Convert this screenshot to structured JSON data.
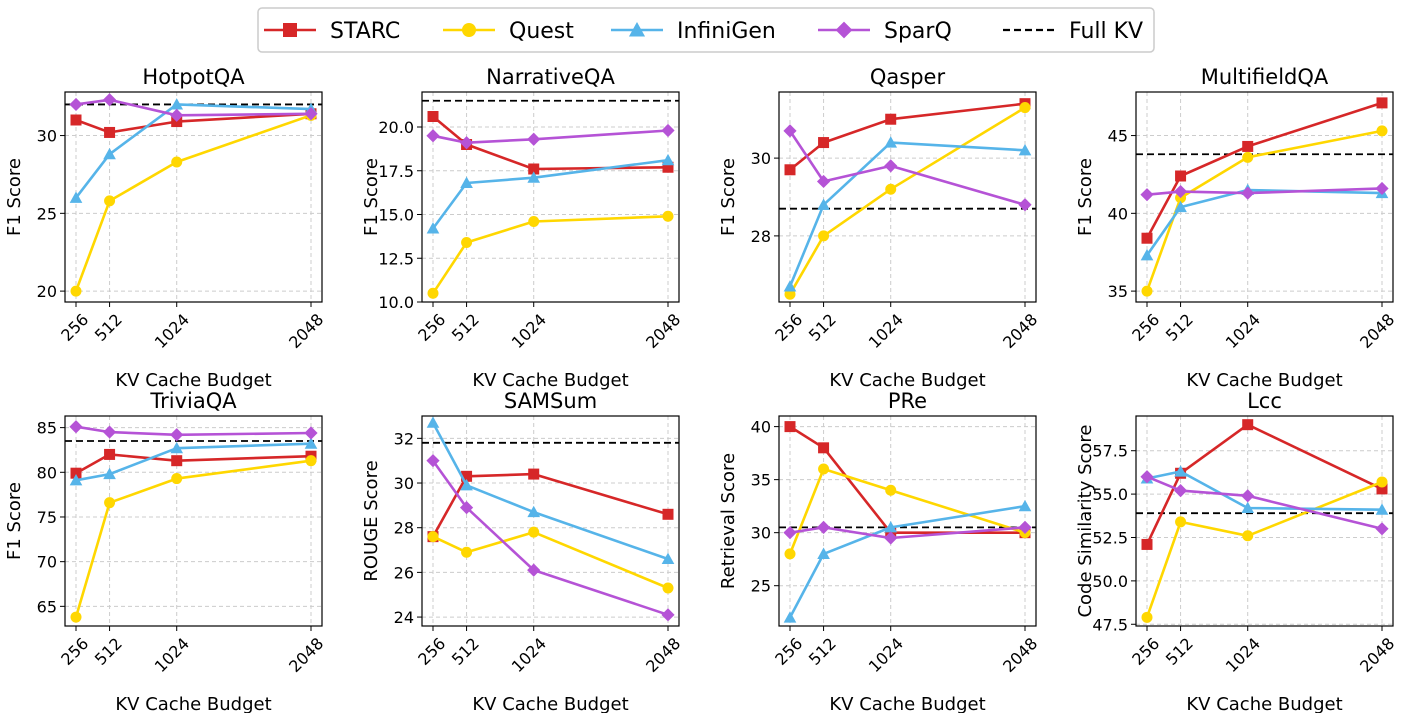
{
  "legend": {
    "items": [
      {
        "name": "STARC",
        "color": "#d62728",
        "marker": "square"
      },
      {
        "name": "Quest",
        "color": "#ffd700",
        "marker": "circle"
      },
      {
        "name": "InfiniGen",
        "color": "#56b4e9",
        "marker": "triangle"
      },
      {
        "name": "SparQ",
        "color": "#b553d6",
        "marker": "diamond"
      },
      {
        "name": "Full KV",
        "color": "#000000",
        "marker": "dashed"
      }
    ]
  },
  "chart_data": [
    {
      "type": "line",
      "title": "HotpotQA",
      "xlabel": "KV Cache Budget",
      "ylabel": "F1 Score",
      "x": [
        256,
        512,
        1024,
        2048
      ],
      "xticks": [
        "256",
        "512",
        "1024",
        "2048"
      ],
      "ylim": [
        19.3,
        32.8
      ],
      "yticks": [
        20,
        25,
        30
      ],
      "ytick_labels": [
        "20",
        "25",
        "30"
      ],
      "full_kv": 32.0,
      "series": [
        {
          "name": "STARC",
          "values": [
            31.0,
            30.2,
            30.9,
            31.4
          ]
        },
        {
          "name": "Quest",
          "values": [
            20.0,
            25.8,
            28.3,
            31.3
          ]
        },
        {
          "name": "InfiniGen",
          "values": [
            26.0,
            28.8,
            32.0,
            31.7
          ]
        },
        {
          "name": "SparQ",
          "values": [
            32.0,
            32.3,
            31.3,
            31.4
          ]
        }
      ]
    },
    {
      "type": "line",
      "title": "NarrativeQA",
      "xlabel": "KV Cache Budget",
      "ylabel": "F1 Score",
      "x": [
        256,
        512,
        1024,
        2048
      ],
      "xticks": [
        "256",
        "512",
        "1024",
        "2048"
      ],
      "ylim": [
        10.0,
        22.0
      ],
      "yticks": [
        10.0,
        12.5,
        15.0,
        17.5,
        20.0
      ],
      "ytick_labels": [
        "10.0",
        "12.5",
        "15.0",
        "17.5",
        "20.0"
      ],
      "full_kv": 21.5,
      "series": [
        {
          "name": "STARC",
          "values": [
            20.6,
            19.0,
            17.6,
            17.7
          ]
        },
        {
          "name": "Quest",
          "values": [
            10.5,
            13.4,
            14.6,
            14.9
          ]
        },
        {
          "name": "InfiniGen",
          "values": [
            14.2,
            16.8,
            17.1,
            18.1
          ]
        },
        {
          "name": "SparQ",
          "values": [
            19.5,
            19.1,
            19.3,
            19.8
          ]
        }
      ]
    },
    {
      "type": "line",
      "title": "Qasper",
      "xlabel": "KV Cache Budget",
      "ylabel": "F1 Score",
      "x": [
        256,
        512,
        1024,
        2048
      ],
      "xticks": [
        "256",
        "512",
        "1024",
        "2048"
      ],
      "ylim": [
        26.3,
        31.7
      ],
      "yticks": [
        28,
        30
      ],
      "ytick_labels": [
        "28",
        "30"
      ],
      "full_kv": 28.7,
      "series": [
        {
          "name": "STARC",
          "values": [
            29.7,
            30.4,
            31.0,
            31.4
          ]
        },
        {
          "name": "Quest",
          "values": [
            26.5,
            28.0,
            29.2,
            31.3
          ]
        },
        {
          "name": "InfiniGen",
          "values": [
            26.7,
            28.8,
            30.4,
            30.2
          ]
        },
        {
          "name": "SparQ",
          "values": [
            30.7,
            29.4,
            29.8,
            28.8
          ]
        }
      ]
    },
    {
      "type": "line",
      "title": "MultifieldQA",
      "xlabel": "KV Cache Budget",
      "ylabel": "F1 Score",
      "x": [
        256,
        512,
        1024,
        2048
      ],
      "xticks": [
        "256",
        "512",
        "1024",
        "2048"
      ],
      "ylim": [
        34.3,
        47.8
      ],
      "yticks": [
        35,
        40,
        45
      ],
      "ytick_labels": [
        "35",
        "40",
        "45"
      ],
      "full_kv": 43.8,
      "series": [
        {
          "name": "STARC",
          "values": [
            38.4,
            42.4,
            44.3,
            47.1
          ]
        },
        {
          "name": "Quest",
          "values": [
            35.0,
            41.0,
            43.6,
            45.3
          ]
        },
        {
          "name": "InfiniGen",
          "values": [
            37.3,
            40.4,
            41.5,
            41.3
          ]
        },
        {
          "name": "SparQ",
          "values": [
            41.2,
            41.4,
            41.3,
            41.6
          ]
        }
      ]
    },
    {
      "type": "line",
      "title": "TriviaQA",
      "xlabel": "KV Cache Budget",
      "ylabel": "F1 Score",
      "x": [
        256,
        512,
        1024,
        2048
      ],
      "xticks": [
        "256",
        "512",
        "1024",
        "2048"
      ],
      "ylim": [
        62.8,
        86.3
      ],
      "yticks": [
        65,
        70,
        75,
        80,
        85
      ],
      "ytick_labels": [
        "65",
        "70",
        "75",
        "80",
        "85"
      ],
      "full_kv": 83.5,
      "series": [
        {
          "name": "STARC",
          "values": [
            79.9,
            82.0,
            81.3,
            81.8
          ]
        },
        {
          "name": "Quest",
          "values": [
            63.8,
            76.6,
            79.3,
            81.3
          ]
        },
        {
          "name": "InfiniGen",
          "values": [
            79.1,
            79.8,
            82.7,
            83.2
          ]
        },
        {
          "name": "SparQ",
          "values": [
            85.1,
            84.5,
            84.2,
            84.4
          ]
        }
      ]
    },
    {
      "type": "line",
      "title": "SAMSum",
      "xlabel": "KV Cache Budget",
      "ylabel": "ROUGE Score",
      "x": [
        256,
        512,
        1024,
        2048
      ],
      "xticks": [
        "256",
        "512",
        "1024",
        "2048"
      ],
      "ylim": [
        23.6,
        33.0
      ],
      "yticks": [
        24,
        26,
        28,
        30,
        32
      ],
      "ytick_labels": [
        "24",
        "26",
        "28",
        "30",
        "32"
      ],
      "full_kv": 31.8,
      "series": [
        {
          "name": "STARC",
          "values": [
            27.6,
            30.3,
            30.4,
            28.6
          ]
        },
        {
          "name": "Quest",
          "values": [
            27.6,
            26.9,
            27.8,
            25.3
          ]
        },
        {
          "name": "InfiniGen",
          "values": [
            32.7,
            29.9,
            28.7,
            26.6
          ]
        },
        {
          "name": "SparQ",
          "values": [
            31.0,
            28.9,
            26.1,
            24.1
          ]
        }
      ]
    },
    {
      "type": "line",
      "title": "PRe",
      "xlabel": "KV Cache Budget",
      "ylabel": "Retrieval Score",
      "x": [
        256,
        512,
        1024,
        2048
      ],
      "xticks": [
        "256",
        "512",
        "1024",
        "2048"
      ],
      "ylim": [
        21.2,
        41.0
      ],
      "yticks": [
        25,
        30,
        35,
        40
      ],
      "ytick_labels": [
        "25",
        "30",
        "35",
        "40"
      ],
      "full_kv": 30.5,
      "series": [
        {
          "name": "STARC",
          "values": [
            40.0,
            38.0,
            30.0,
            30.0
          ]
        },
        {
          "name": "Quest",
          "values": [
            28.0,
            36.0,
            34.0,
            30.0
          ]
        },
        {
          "name": "InfiniGen",
          "values": [
            22.0,
            28.0,
            30.5,
            32.5
          ]
        },
        {
          "name": "SparQ",
          "values": [
            30.0,
            30.5,
            29.5,
            30.5
          ]
        }
      ]
    },
    {
      "type": "line",
      "title": "Lcc",
      "xlabel": "KV Cache Budget",
      "ylabel": "Code Similarity Score",
      "x": [
        256,
        512,
        1024,
        2048
      ],
      "xticks": [
        "256",
        "512",
        "1024",
        "2048"
      ],
      "ylim": [
        47.4,
        59.5
      ],
      "yticks": [
        47.5,
        50.0,
        52.5,
        55.0,
        57.5
      ],
      "ytick_labels": [
        "47.5",
        "50.0",
        "52.5",
        "55.0",
        "57.5"
      ],
      "full_kv": 53.9,
      "series": [
        {
          "name": "STARC",
          "values": [
            52.1,
            56.2,
            59.0,
            55.3
          ]
        },
        {
          "name": "Quest",
          "values": [
            47.9,
            53.4,
            52.6,
            55.7
          ]
        },
        {
          "name": "InfiniGen",
          "values": [
            55.9,
            56.3,
            54.2,
            54.1
          ]
        },
        {
          "name": "SparQ",
          "values": [
            56.0,
            55.2,
            54.9,
            53.0
          ]
        }
      ]
    }
  ]
}
